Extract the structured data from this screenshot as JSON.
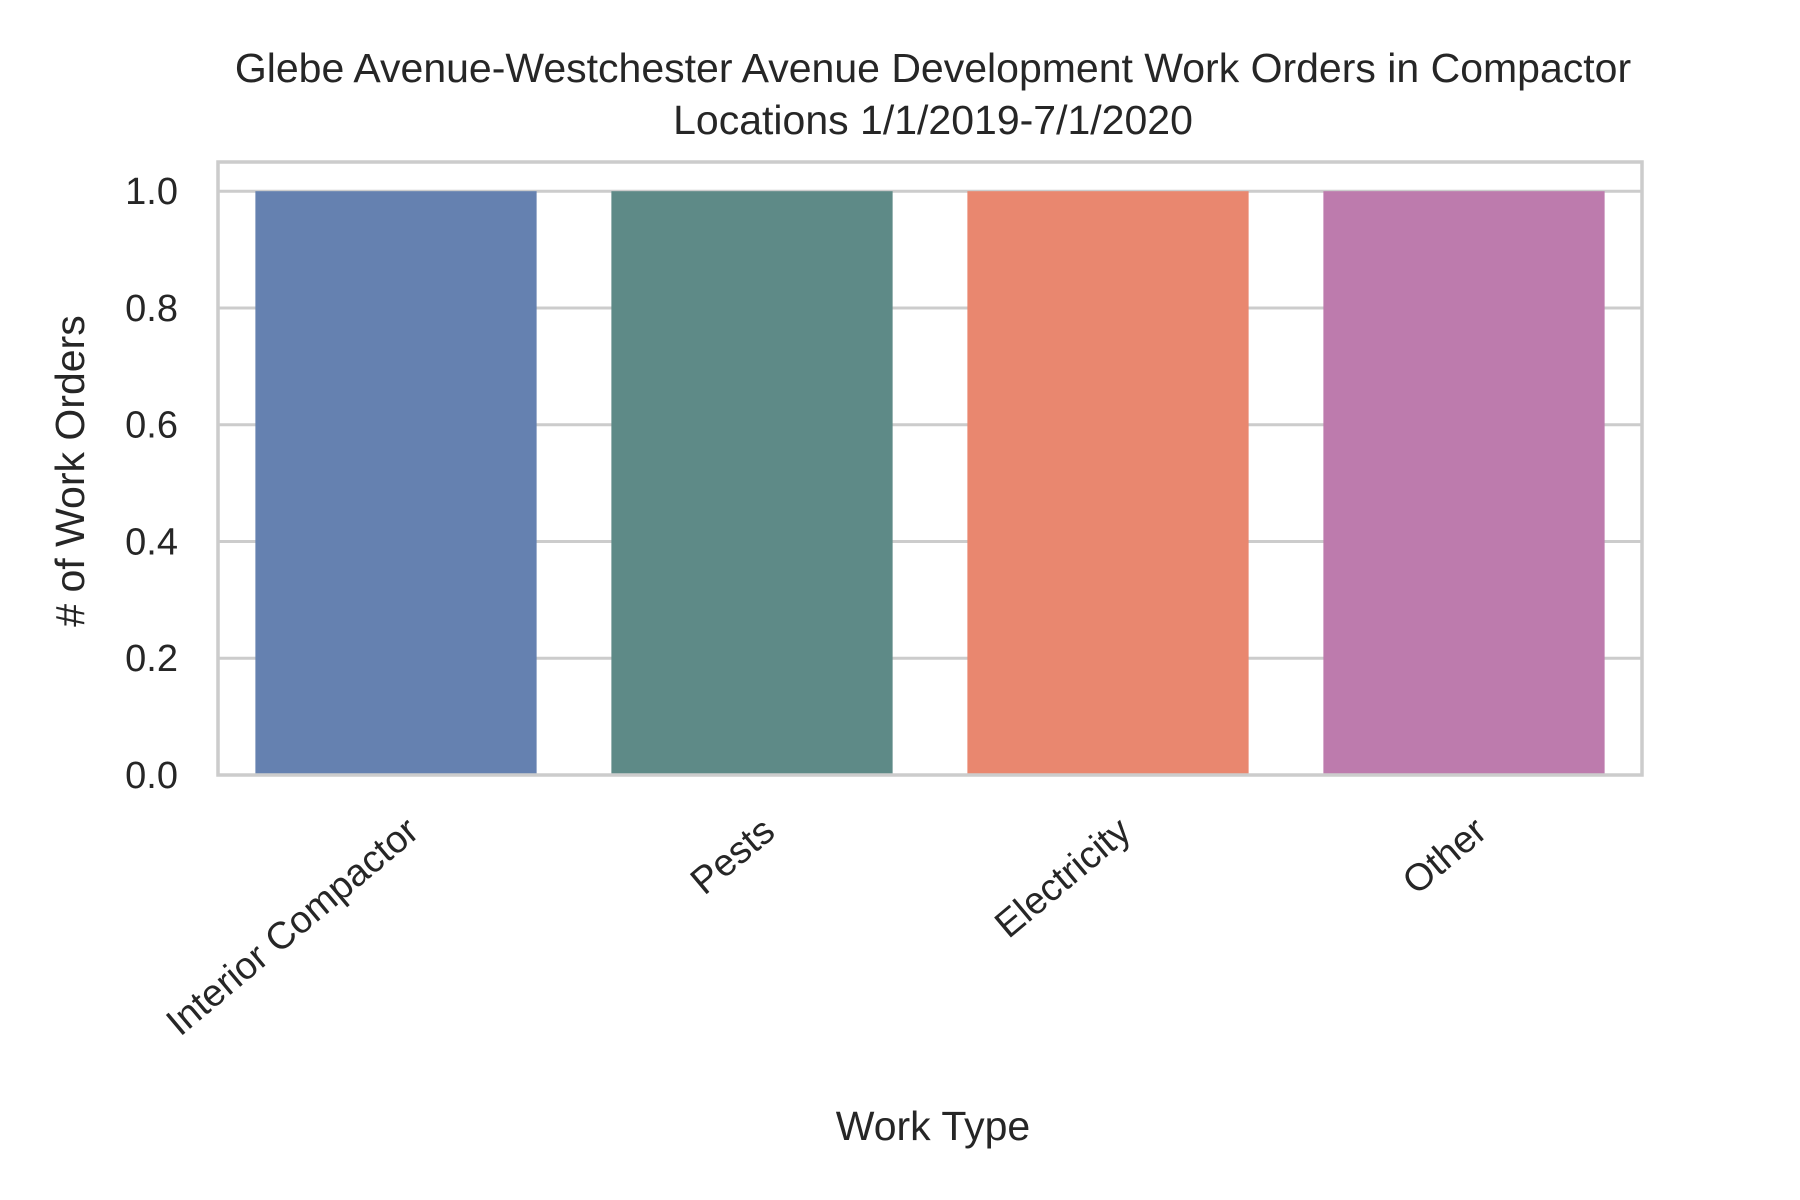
{
  "chart_data": {
    "type": "bar",
    "title": "Glebe Avenue-Westchester Avenue Development Work Orders in Compactor Locations 1/1/2019-7/1/2020",
    "title_lines": [
      "Glebe Avenue-Westchester Avenue Development Work Orders in Compactor",
      "Locations 1/1/2019-7/1/2020"
    ],
    "xlabel": "Work Type",
    "ylabel": "# of Work Orders",
    "categories": [
      "Interior Compactor",
      "Pests",
      "Electricity",
      "Other"
    ],
    "values": [
      1,
      1,
      1,
      1
    ],
    "colors": [
      "#6581b0",
      "#5e8a87",
      "#e9876f",
      "#bd7bad"
    ],
    "ylim": [
      0,
      1.05
    ],
    "yticks": [
      0.0,
      0.2,
      0.4,
      0.6,
      0.8,
      1.0
    ],
    "ytick_labels": [
      "0.0",
      "0.2",
      "0.4",
      "0.6",
      "0.8",
      "1.0"
    ],
    "grid": "horizontal",
    "legend": "none"
  }
}
